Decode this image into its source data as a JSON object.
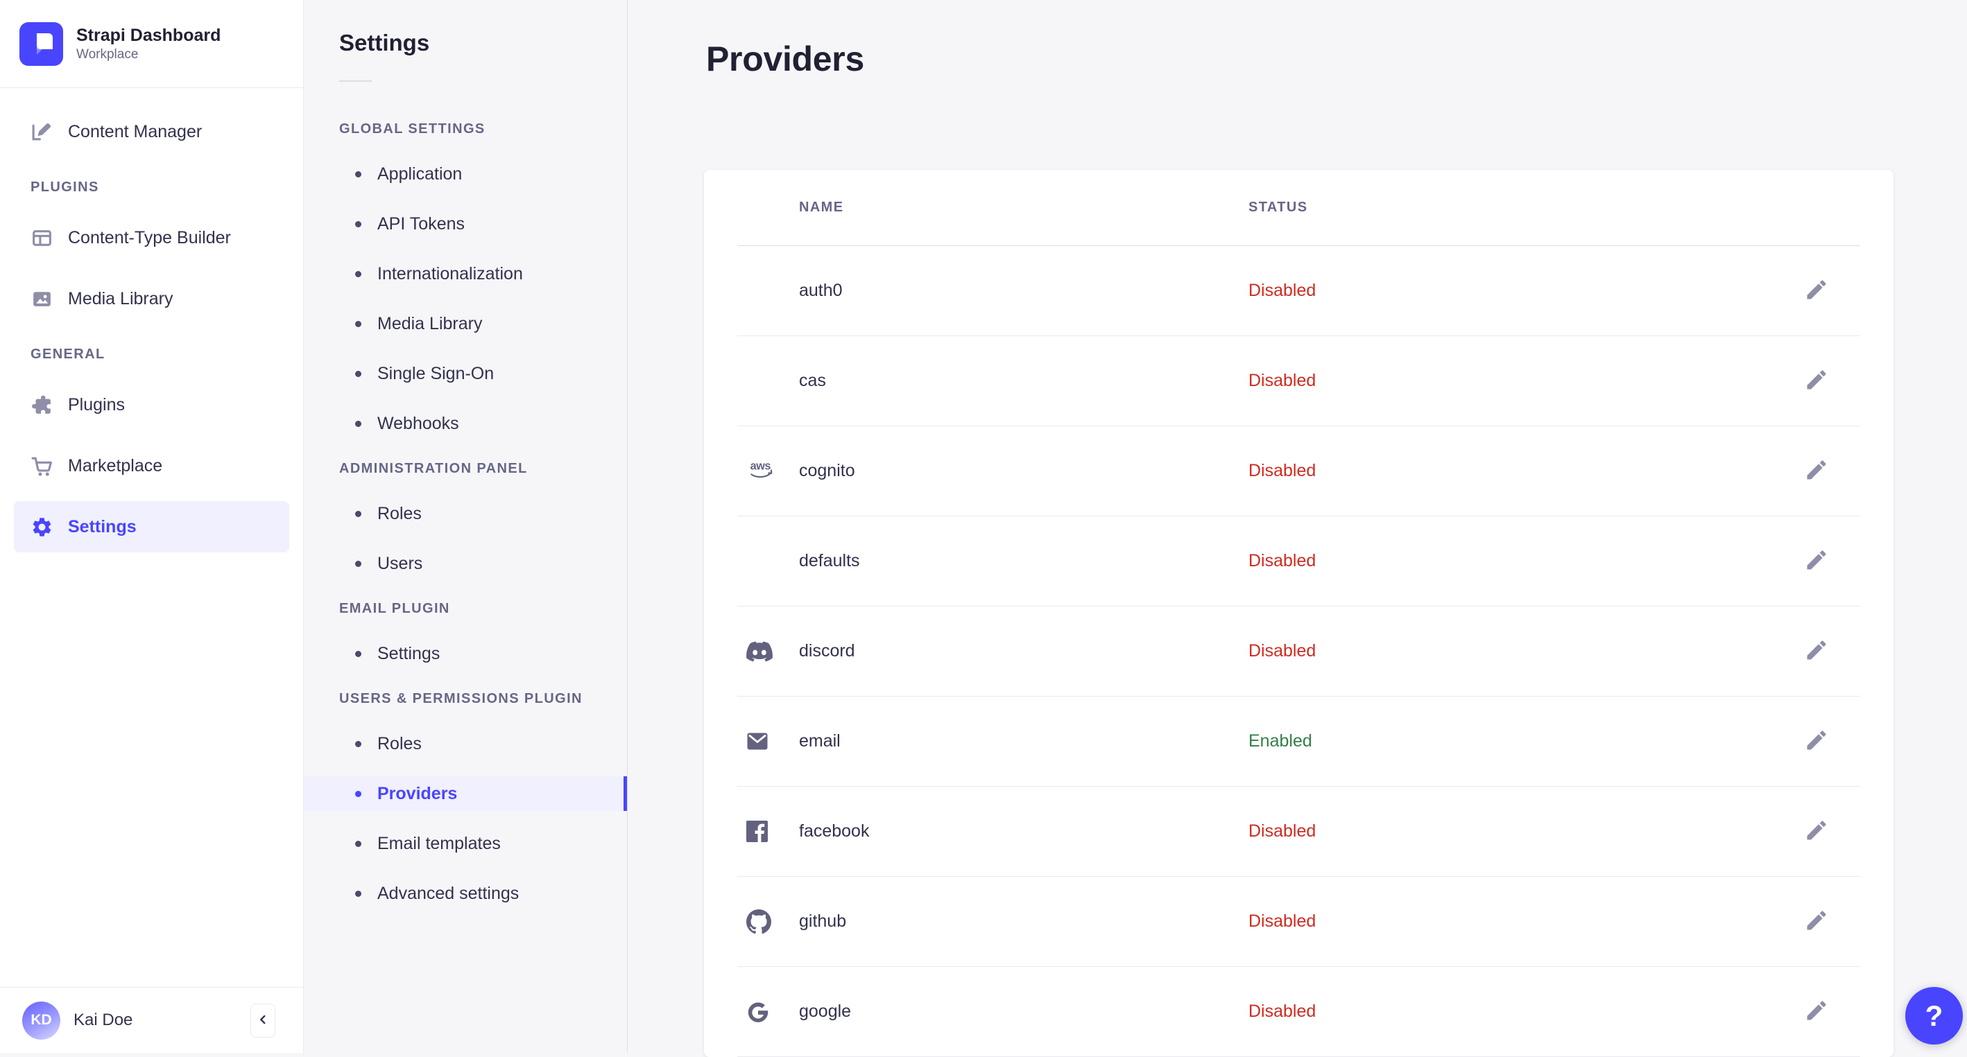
{
  "brand": {
    "title": "Strapi Dashboard",
    "subtitle": "Workplace",
    "logo_icon": "strapi-logo-icon"
  },
  "sidebar": {
    "sections": [
      {
        "header": null,
        "items": [
          {
            "label": "Content Manager",
            "icon": "pen-icon",
            "active": false
          }
        ]
      },
      {
        "header": "PLUGINS",
        "items": [
          {
            "label": "Content-Type Builder",
            "icon": "layout-icon",
            "active": false
          },
          {
            "label": "Media Library",
            "icon": "picture-icon",
            "active": false
          }
        ]
      },
      {
        "header": "GENERAL",
        "items": [
          {
            "label": "Plugins",
            "icon": "puzzle-icon",
            "active": false
          },
          {
            "label": "Marketplace",
            "icon": "cart-icon",
            "active": false
          },
          {
            "label": "Settings",
            "icon": "gear-icon",
            "active": true
          }
        ]
      }
    ],
    "user": {
      "initials": "KD",
      "name": "Kai Doe"
    },
    "collapse_icon": "chevron-left-icon"
  },
  "subnav": {
    "title": "Settings",
    "active_item": "Providers",
    "sections": [
      {
        "header": "GLOBAL SETTINGS",
        "items": [
          "Application",
          "API Tokens",
          "Internationalization",
          "Media Library",
          "Single Sign-On",
          "Webhooks"
        ]
      },
      {
        "header": "ADMINISTRATION PANEL",
        "items": [
          "Roles",
          "Users"
        ]
      },
      {
        "header": "EMAIL PLUGIN",
        "items": [
          "Settings"
        ]
      },
      {
        "header": "USERS & PERMISSIONS PLUGIN",
        "items": [
          "Roles",
          "Providers",
          "Email templates",
          "Advanced settings"
        ]
      }
    ]
  },
  "main": {
    "title": "Providers",
    "table": {
      "columns": [
        "NAME",
        "STATUS"
      ],
      "edit_icon": "pencil-icon",
      "rows": [
        {
          "icon": null,
          "name": "auth0",
          "status": "Disabled"
        },
        {
          "icon": null,
          "name": "cas",
          "status": "Disabled"
        },
        {
          "icon": "aws-icon",
          "name": "cognito",
          "status": "Disabled"
        },
        {
          "icon": null,
          "name": "defaults",
          "status": "Disabled"
        },
        {
          "icon": "discord-icon",
          "name": "discord",
          "status": "Disabled"
        },
        {
          "icon": "envelope-icon",
          "name": "email",
          "status": "Enabled"
        },
        {
          "icon": "facebook-icon",
          "name": "facebook",
          "status": "Disabled"
        },
        {
          "icon": "github-icon",
          "name": "github",
          "status": "Disabled"
        },
        {
          "icon": "google-icon",
          "name": "google",
          "status": "Disabled"
        }
      ]
    }
  },
  "help": {
    "icon": "question-mark-icon",
    "label": "?"
  },
  "colors": {
    "accent": "#4945FF",
    "accent_bg": "#F0F0FF",
    "danger": "#D02B20",
    "success": "#328048"
  }
}
